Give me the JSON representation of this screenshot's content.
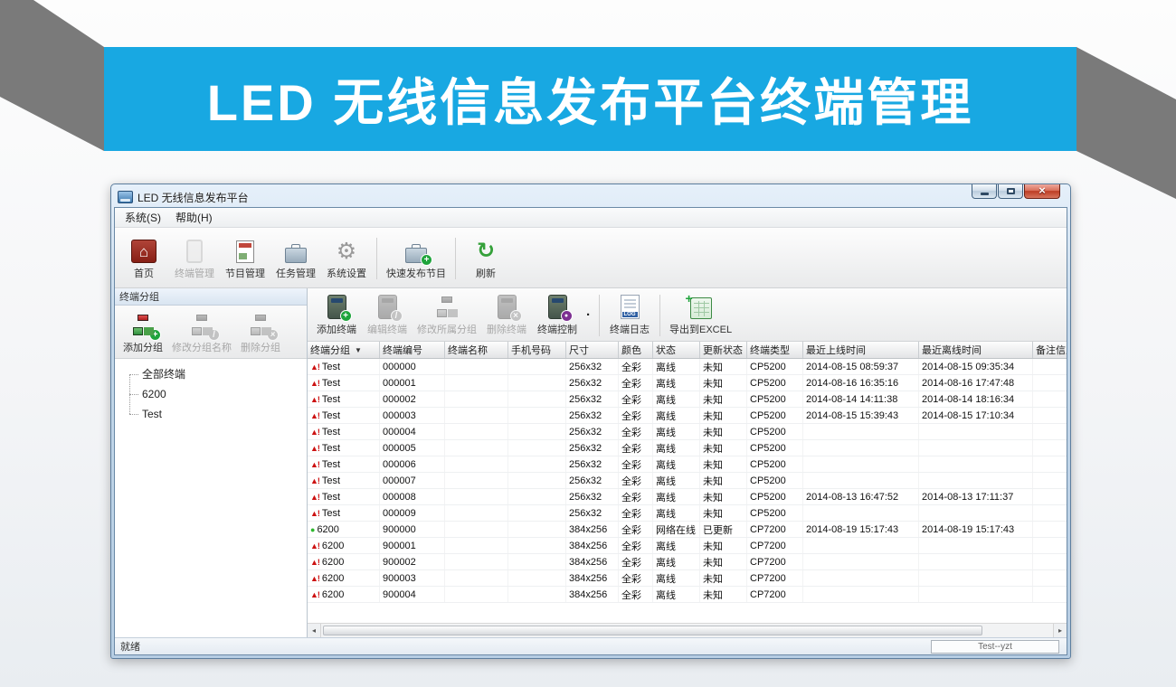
{
  "banner": {
    "title": "LED 无线信息发布平台终端管理",
    "bg_color": "#18a8e2",
    "text_color": "#ffffff",
    "ribbon_color": "#7a7a7a"
  },
  "window": {
    "title": "LED 无线信息发布平台",
    "window_buttons": [
      {
        "name": "minimize"
      },
      {
        "name": "maximize"
      },
      {
        "name": "close"
      }
    ],
    "menu_items": [
      "系统(S)",
      "帮助(H)"
    ],
    "main_toolbar": [
      {
        "label": "首页",
        "icon": "home",
        "state": "active"
      },
      {
        "label": "终端管理",
        "icon": "terminal-mgmt",
        "state": "disabled"
      },
      {
        "label": "节目管理",
        "icon": "program-mgmt",
        "state": "normal"
      },
      {
        "label": "任务管理",
        "icon": "task-mgmt",
        "state": "normal"
      },
      {
        "label": "系统设置",
        "icon": "settings",
        "state": "normal"
      },
      {
        "type": "separator"
      },
      {
        "label": "快速发布节目",
        "icon": "quick-publish",
        "state": "normal"
      },
      {
        "type": "separator"
      },
      {
        "label": "刷新",
        "icon": "refresh",
        "state": "normal"
      }
    ],
    "group_panel": {
      "header": "终端分组",
      "buttons": [
        {
          "label": "添加分组",
          "icon": "group-add",
          "state": "normal"
        },
        {
          "label": "修改分组名称",
          "icon": "group-rename",
          "state": "disabled"
        },
        {
          "label": "删除分组",
          "icon": "group-delete",
          "state": "disabled"
        }
      ],
      "tree": [
        {
          "label": "全部终端"
        },
        {
          "label": "6200"
        },
        {
          "label": "Test"
        }
      ]
    },
    "terminal_toolbar": [
      {
        "label": "添加终端",
        "icon": "terminal-add",
        "state": "normal"
      },
      {
        "label": "编辑终端",
        "icon": "terminal-edit",
        "state": "disabled"
      },
      {
        "label": "修改所属分组",
        "icon": "terminal-move-group",
        "state": "disabled"
      },
      {
        "label": "删除终端",
        "icon": "terminal-delete",
        "state": "disabled"
      },
      {
        "label": "终端控制",
        "icon": "terminal-control",
        "state": "normal"
      },
      {
        "type": "overflow",
        "label": "·"
      },
      {
        "type": "separator"
      },
      {
        "label": "终端日志",
        "icon": "terminal-log",
        "state": "normal"
      },
      {
        "type": "separator"
      },
      {
        "label": "导出到EXCEL",
        "icon": "export-excel",
        "state": "normal"
      }
    ],
    "table": {
      "columns": [
        {
          "label": "终端分组",
          "filter": "▼"
        },
        {
          "label": "终端编号"
        },
        {
          "label": "终端名称"
        },
        {
          "label": "手机号码"
        },
        {
          "label": "尺寸"
        },
        {
          "label": "颜色"
        },
        {
          "label": "状态"
        },
        {
          "label": "更新状态"
        },
        {
          "label": "终端类型"
        },
        {
          "label": "最近上线时间"
        },
        {
          "label": "最近离线时间"
        },
        {
          "label": "备注信息"
        }
      ],
      "icon_glyphs": {
        "warning": "▲!",
        "online": "●"
      },
      "icon_colors": {
        "warning": "#cc1111",
        "online": "#2db82d"
      },
      "rows": [
        {
          "icon": "warning",
          "group": "Test",
          "no": "000000",
          "name": "",
          "phone": "",
          "size": "256x32",
          "color": "全彩",
          "status": "离线",
          "update": "未知",
          "type": "CP5200",
          "online_time": "2014-08-15 08:59:37",
          "offline_time": "2014-08-15 09:35:34",
          "remark": ""
        },
        {
          "icon": "warning",
          "group": "Test",
          "no": "000001",
          "name": "",
          "phone": "",
          "size": "256x32",
          "color": "全彩",
          "status": "离线",
          "update": "未知",
          "type": "CP5200",
          "online_time": "2014-08-16 16:35:16",
          "offline_time": "2014-08-16 17:47:48",
          "remark": ""
        },
        {
          "icon": "warning",
          "group": "Test",
          "no": "000002",
          "name": "",
          "phone": "",
          "size": "256x32",
          "color": "全彩",
          "status": "离线",
          "update": "未知",
          "type": "CP5200",
          "online_time": "2014-08-14 14:11:38",
          "offline_time": "2014-08-14 18:16:34",
          "remark": ""
        },
        {
          "icon": "warning",
          "group": "Test",
          "no": "000003",
          "name": "",
          "phone": "",
          "size": "256x32",
          "color": "全彩",
          "status": "离线",
          "update": "未知",
          "type": "CP5200",
          "online_time": "2014-08-15 15:39:43",
          "offline_time": "2014-08-15 17:10:34",
          "remark": ""
        },
        {
          "icon": "warning",
          "group": "Test",
          "no": "000004",
          "name": "",
          "phone": "",
          "size": "256x32",
          "color": "全彩",
          "status": "离线",
          "update": "未知",
          "type": "CP5200",
          "online_time": "",
          "offline_time": "",
          "remark": ""
        },
        {
          "icon": "warning",
          "group": "Test",
          "no": "000005",
          "name": "",
          "phone": "",
          "size": "256x32",
          "color": "全彩",
          "status": "离线",
          "update": "未知",
          "type": "CP5200",
          "online_time": "",
          "offline_time": "",
          "remark": ""
        },
        {
          "icon": "warning",
          "group": "Test",
          "no": "000006",
          "name": "",
          "phone": "",
          "size": "256x32",
          "color": "全彩",
          "status": "离线",
          "update": "未知",
          "type": "CP5200",
          "online_time": "",
          "offline_time": "",
          "remark": ""
        },
        {
          "icon": "warning",
          "group": "Test",
          "no": "000007",
          "name": "",
          "phone": "",
          "size": "256x32",
          "color": "全彩",
          "status": "离线",
          "update": "未知",
          "type": "CP5200",
          "online_time": "",
          "offline_time": "",
          "remark": ""
        },
        {
          "icon": "warning",
          "group": "Test",
          "no": "000008",
          "name": "",
          "phone": "",
          "size": "256x32",
          "color": "全彩",
          "status": "离线",
          "update": "未知",
          "type": "CP5200",
          "online_time": "2014-08-13 16:47:52",
          "offline_time": "2014-08-13 17:11:37",
          "remark": ""
        },
        {
          "icon": "warning",
          "group": "Test",
          "no": "000009",
          "name": "",
          "phone": "",
          "size": "256x32",
          "color": "全彩",
          "status": "离线",
          "update": "未知",
          "type": "CP5200",
          "online_time": "",
          "offline_time": "",
          "remark": ""
        },
        {
          "icon": "online",
          "group": "6200",
          "no": "900000",
          "name": "",
          "phone": "",
          "size": "384x256",
          "color": "全彩",
          "status": "网络在线",
          "update": "已更新",
          "type": "CP7200",
          "online_time": "2014-08-19 15:17:43",
          "offline_time": "2014-08-19 15:17:43",
          "remark": ""
        },
        {
          "icon": "warning",
          "group": "6200",
          "no": "900001",
          "name": "",
          "phone": "",
          "size": "384x256",
          "color": "全彩",
          "status": "离线",
          "update": "未知",
          "type": "CP7200",
          "online_time": "",
          "offline_time": "",
          "remark": ""
        },
        {
          "icon": "warning",
          "group": "6200",
          "no": "900002",
          "name": "",
          "phone": "",
          "size": "384x256",
          "color": "全彩",
          "status": "离线",
          "update": "未知",
          "type": "CP7200",
          "online_time": "",
          "offline_time": "",
          "remark": ""
        },
        {
          "icon": "warning",
          "group": "6200",
          "no": "900003",
          "name": "",
          "phone": "",
          "size": "384x256",
          "color": "全彩",
          "status": "离线",
          "update": "未知",
          "type": "CP7200",
          "online_time": "",
          "offline_time": "",
          "remark": ""
        },
        {
          "icon": "warning",
          "group": "6200",
          "no": "900004",
          "name": "",
          "phone": "",
          "size": "384x256",
          "color": "全彩",
          "status": "离线",
          "update": "未知",
          "type": "CP7200",
          "online_time": "",
          "offline_time": "",
          "remark": ""
        }
      ]
    },
    "h_scrollbar": {
      "left_arrow": "◂",
      "right_arrow": "▸"
    },
    "status_bar": {
      "ready": "就绪",
      "right_box": "Test--yzt"
    }
  }
}
